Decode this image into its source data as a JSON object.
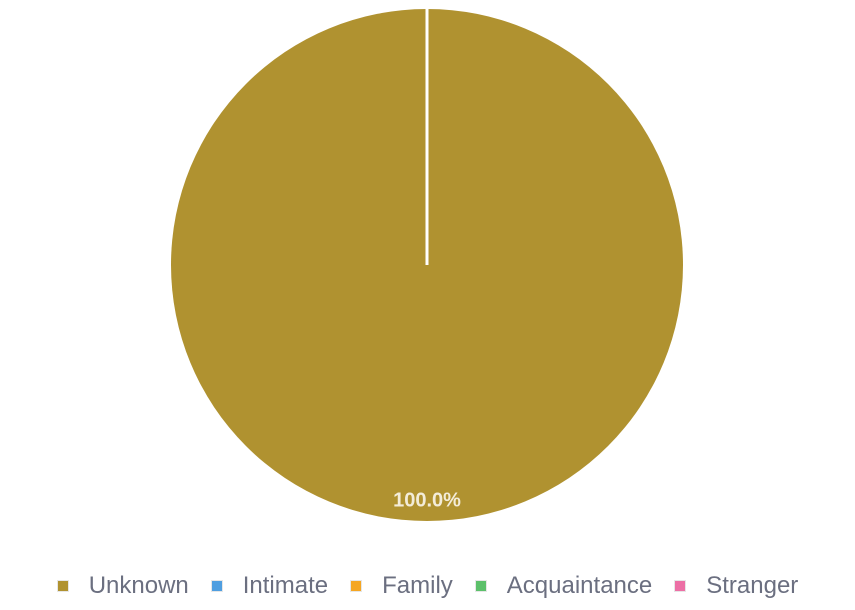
{
  "chart_data": {
    "type": "pie",
    "categories": [
      "Unknown",
      "Intimate",
      "Family",
      "Acquaintance",
      "Stranger"
    ],
    "values": [
      100,
      0,
      0,
      0,
      0
    ],
    "data_labels": [
      "100.0%"
    ],
    "colors": {
      "Unknown": "#b09230",
      "Intimate": "#4f9ee0",
      "Family": "#f5a623",
      "Acquaintance": "#5cc06a",
      "Stranger": "#ec6fa5"
    },
    "legend_position": "bottom"
  }
}
